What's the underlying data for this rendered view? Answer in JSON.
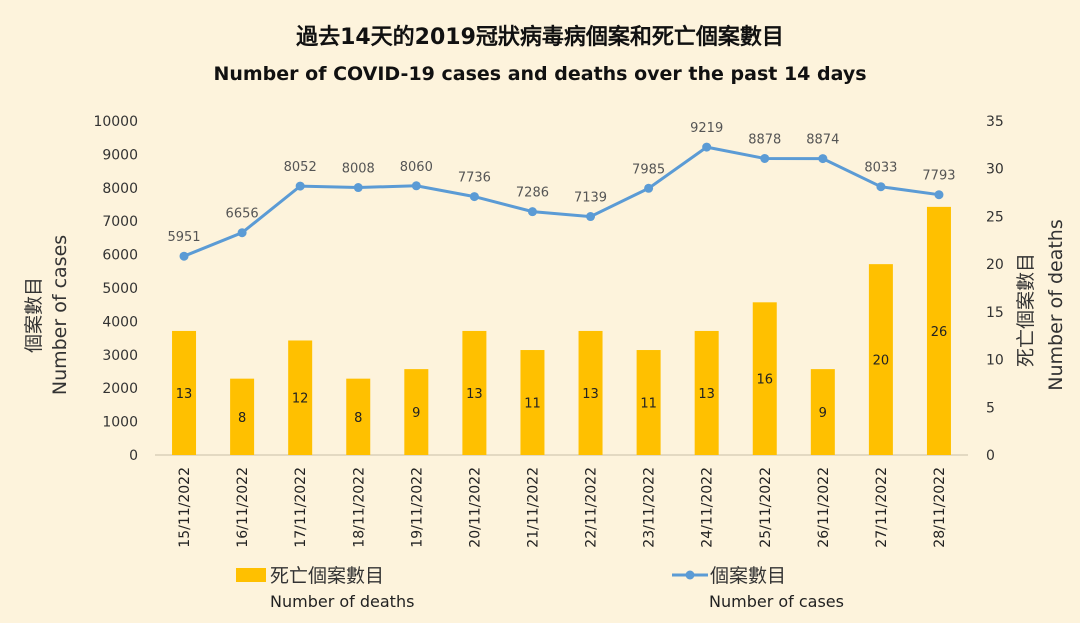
{
  "chart_data": {
    "type": "bar+line",
    "title": "過去14天的2019冠狀病毒病個案和死亡個案數目",
    "subtitle": "Number of COVID-19 cases and deaths over the past 14 days",
    "categories": [
      "15/11/2022",
      "16/11/2022",
      "17/11/2022",
      "18/11/2022",
      "19/11/2022",
      "20/11/2022",
      "21/11/2022",
      "22/11/2022",
      "23/11/2022",
      "24/11/2022",
      "25/11/2022",
      "26/11/2022",
      "27/11/2022",
      "28/11/2022"
    ],
    "left_axis": {
      "label_zh": "個案數目",
      "label_en": "Number of cases",
      "ylim": [
        0,
        10000
      ],
      "ticks": [
        0,
        1000,
        2000,
        3000,
        4000,
        5000,
        6000,
        7000,
        8000,
        9000,
        10000
      ]
    },
    "right_axis": {
      "label_zh": "死亡個案數目",
      "label_en": "Number of deaths",
      "ylim": [
        0,
        35
      ],
      "ticks": [
        0,
        5,
        10,
        15,
        20,
        25,
        30,
        35
      ]
    },
    "series": [
      {
        "name_zh": "死亡個案數目",
        "name_en": "Number of deaths",
        "type": "bar",
        "axis": "right",
        "color": "#ffc000",
        "values": [
          13,
          8,
          12,
          8,
          9,
          13,
          11,
          13,
          11,
          13,
          16,
          9,
          20,
          26
        ]
      },
      {
        "name_zh": "個案數目",
        "name_en": "Number of cases",
        "type": "line",
        "axis": "left",
        "color": "#5b9bd5",
        "values": [
          5951,
          6656,
          8052,
          8008,
          8060,
          7736,
          7286,
          7139,
          7985,
          9219,
          8878,
          8874,
          8033,
          7793
        ]
      }
    ],
    "legend_position": "bottom",
    "grid": false
  }
}
